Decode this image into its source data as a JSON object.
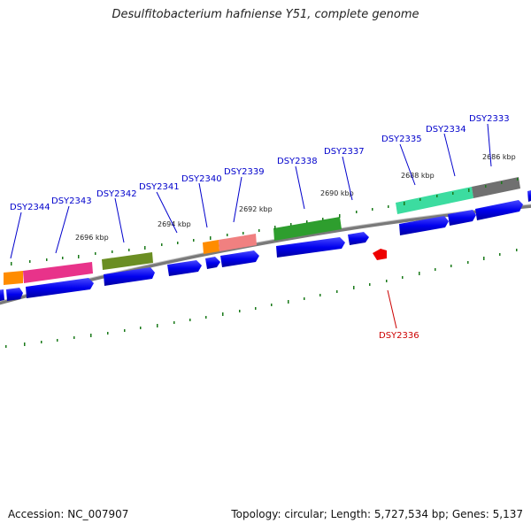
{
  "title": "Desulfitobacterium hafniense Y51, complete genome",
  "footer": {
    "accession": "Accession: NC_007907",
    "stats": "Topology: circular; Length: 5,727,534 bp; Genes: 5,137"
  },
  "colors": {
    "gene_forward": "#0000ee",
    "gene_highlight": "#ee0000",
    "backbone": "#808080",
    "ticks": "#1a7a1a",
    "label": "#0000cc",
    "label_highlight": "#cc0000"
  },
  "kbp_labels": [
    "2696 kbp",
    "2694 kbp",
    "2692 kbp",
    "2690 kbp",
    "2688 kbp",
    "2686 kbp"
  ],
  "genes": [
    {
      "id": "DSY2344",
      "highlight": false
    },
    {
      "id": "DSY2343",
      "highlight": false
    },
    {
      "id": "DSY2342",
      "highlight": false
    },
    {
      "id": "DSY2341",
      "highlight": false
    },
    {
      "id": "DSY2340",
      "highlight": false
    },
    {
      "id": "DSY2339",
      "highlight": false
    },
    {
      "id": "DSY2338",
      "highlight": false
    },
    {
      "id": "DSY2337",
      "highlight": false
    },
    {
      "id": "DSY2335",
      "highlight": false
    },
    {
      "id": "DSY2334",
      "highlight": false
    },
    {
      "id": "DSY2333",
      "highlight": false
    },
    {
      "id": "DSY2336",
      "highlight": true
    }
  ],
  "cog_colors": {
    "orange": "#ff8c00",
    "magenta": "#e8338a",
    "olive": "#6b8e23",
    "salmon": "#f08080",
    "green": "#2e9e2e",
    "aquamarine": "#3cdca0",
    "gray": "#707070"
  }
}
